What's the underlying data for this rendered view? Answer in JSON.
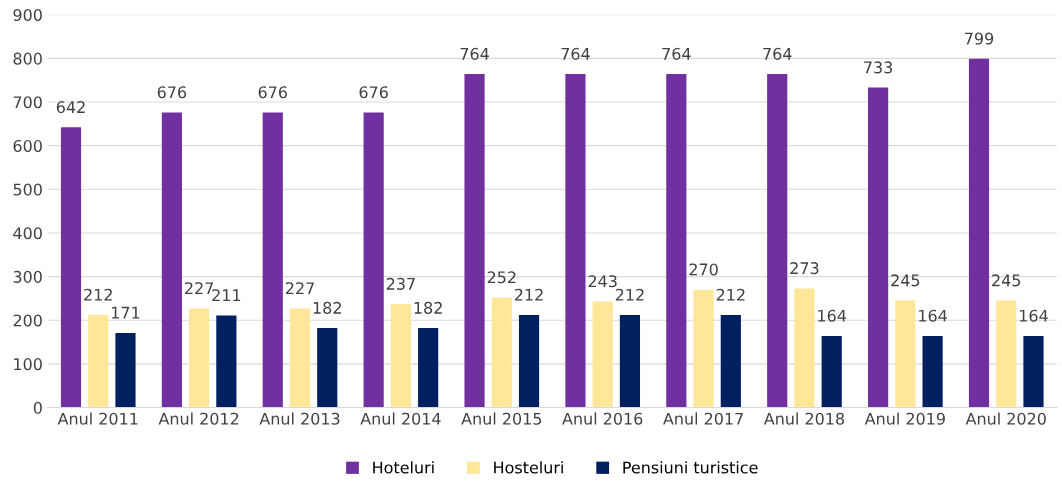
{
  "chart_data": {
    "type": "bar",
    "categories": [
      "Anul 2011",
      "Anul 2012",
      "Anul 2013",
      "Anul 2014",
      "Anul 2015",
      "Anul 2016",
      "Anul 2017",
      "Anul 2018",
      "Anul 2019",
      "Anul 2020"
    ],
    "series": [
      {
        "name": "Hoteluri",
        "color": "#7030a0",
        "values": [
          642,
          676,
          676,
          676,
          764,
          764,
          764,
          764,
          733,
          799
        ]
      },
      {
        "name": "Hosteluri",
        "color": "#ffe699",
        "values": [
          212,
          227,
          227,
          237,
          252,
          243,
          270,
          273,
          245,
          245
        ]
      },
      {
        "name": "Pensiuni turistice",
        "color": "#002060",
        "values": [
          171,
          211,
          182,
          182,
          212,
          212,
          212,
          164,
          164,
          164
        ]
      }
    ],
    "ylim": [
      0,
      900
    ],
    "yticks": [
      0,
      100,
      200,
      300,
      400,
      500,
      600,
      700,
      800,
      900
    ],
    "grid": "y",
    "legend": "bottom",
    "data_labels": true
  }
}
